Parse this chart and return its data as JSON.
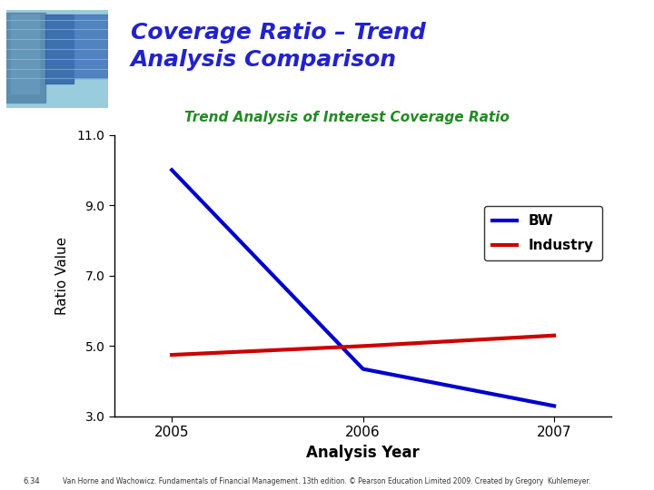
{
  "title": "Coverage Ratio – Trend\nAnalysis Comparison",
  "title_color": "#2222cc",
  "subtitle": "Trend Analysis of Interest Coverage Ratio",
  "subtitle_color": "#228B22",
  "xlabel": "Analysis Year",
  "ylabel": "Ratio Value",
  "years": [
    2005,
    2006,
    2007
  ],
  "bw_values": [
    10.0,
    4.35,
    3.3
  ],
  "industry_values": [
    4.75,
    5.0,
    5.3
  ],
  "bw_color": "#0000cc",
  "industry_color": "#cc0000",
  "ylim": [
    3.0,
    11.0
  ],
  "yticks": [
    3.0,
    5.0,
    7.0,
    9.0,
    11.0
  ],
  "ytick_labels": [
    "3.0",
    "5.0",
    "7.0",
    "9.0",
    "11.0"
  ],
  "legend_labels": [
    "BW",
    "Industry"
  ],
  "footer_text": "Van Horne and Wachowicz. Fundamentals of Financial Management. 13th edition. © Pearson Education Limited 2009. Created by Gregory  Kuhlemeyer.",
  "page_num": "6.34",
  "line_width": 3.0,
  "bg_color": "#ffffff"
}
